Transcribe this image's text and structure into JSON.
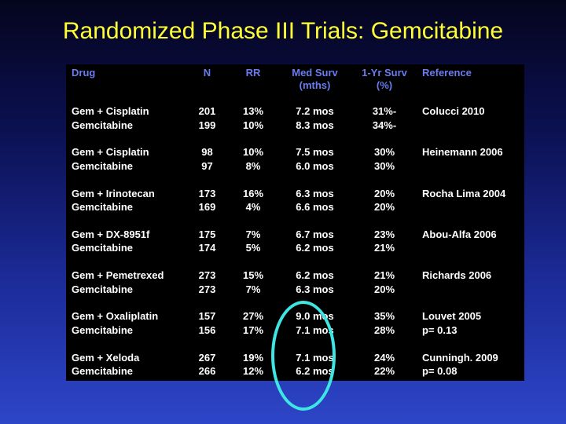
{
  "title": "Randomized Phase III Trials: Gemcitabine",
  "colors": {
    "title": "#ffff33",
    "header": "#6a7cf0",
    "text": "#ffffff",
    "panel": "#000000",
    "highlight": "#3de6e2"
  },
  "table": {
    "headers": {
      "drug": "Drug",
      "n": "N",
      "rr": "RR",
      "med_surv": [
        "Med Surv",
        "(mths)"
      ],
      "one_yr": [
        "1-Yr Surv",
        "(%)"
      ],
      "reference": "Reference"
    },
    "rows": [
      {
        "drug": [
          "Gem + Cisplatin",
          "Gemcitabine"
        ],
        "n": [
          "201",
          "199"
        ],
        "rr": [
          "13%",
          "10%"
        ],
        "med": [
          "7.2 mos",
          "8.3 mos"
        ],
        "yr": [
          "31%-",
          "34%-"
        ],
        "ref": [
          "Colucci 2010",
          ""
        ]
      },
      {
        "drug": [
          "Gem + Cisplatin",
          "Gemcitabine"
        ],
        "n": [
          "98",
          "97"
        ],
        "rr": [
          "10%",
          "8%"
        ],
        "med": [
          "7.5 mos",
          "6.0 mos"
        ],
        "yr": [
          "30%",
          "30%"
        ],
        "ref": [
          "Heinemann 2006",
          ""
        ]
      },
      {
        "drug": [
          "Gem + Irinotecan",
          "Gemcitabine"
        ],
        "n": [
          "173",
          "169"
        ],
        "rr": [
          "16%",
          "4%"
        ],
        "med": [
          "6.3 mos",
          "6.6 mos"
        ],
        "yr": [
          "20%",
          "20%"
        ],
        "ref": [
          "Rocha Lima 2004",
          ""
        ]
      },
      {
        "drug": [
          "Gem + DX-8951f",
          "Gemcitabine"
        ],
        "n": [
          "175",
          "174"
        ],
        "rr": [
          "7%",
          "5%"
        ],
        "med": [
          "6.7 mos",
          "6.2 mos"
        ],
        "yr": [
          "23%",
          "21%"
        ],
        "ref": [
          "Abou-Alfa 2006",
          ""
        ]
      },
      {
        "drug": [
          "Gem + Pemetrexed",
          "Gemcitabine"
        ],
        "n": [
          "273",
          "273"
        ],
        "rr": [
          "15%",
          "7%"
        ],
        "med": [
          "6.2 mos",
          "6.3 mos"
        ],
        "yr": [
          "21%",
          "20%"
        ],
        "ref": [
          "Richards 2006",
          ""
        ]
      },
      {
        "drug": [
          "Gem + Oxaliplatin",
          "Gemcitabine"
        ],
        "n": [
          "157",
          "156"
        ],
        "rr": [
          "27%",
          "17%"
        ],
        "med": [
          "9.0 mos",
          "7.1 mos"
        ],
        "yr": [
          "35%",
          "28%"
        ],
        "ref": [
          "Louvet 2005",
          "p= 0.13"
        ]
      },
      {
        "drug": [
          "Gem + Xeloda",
          "Gemcitabine"
        ],
        "n": [
          "267",
          "266"
        ],
        "rr": [
          "19%",
          "12%"
        ],
        "med": [
          "7.1 mos",
          "6.2 mos"
        ],
        "yr": [
          "24%",
          "22%"
        ],
        "ref": [
          "Cunningh. 2009",
          "p= 0.08"
        ]
      }
    ]
  }
}
